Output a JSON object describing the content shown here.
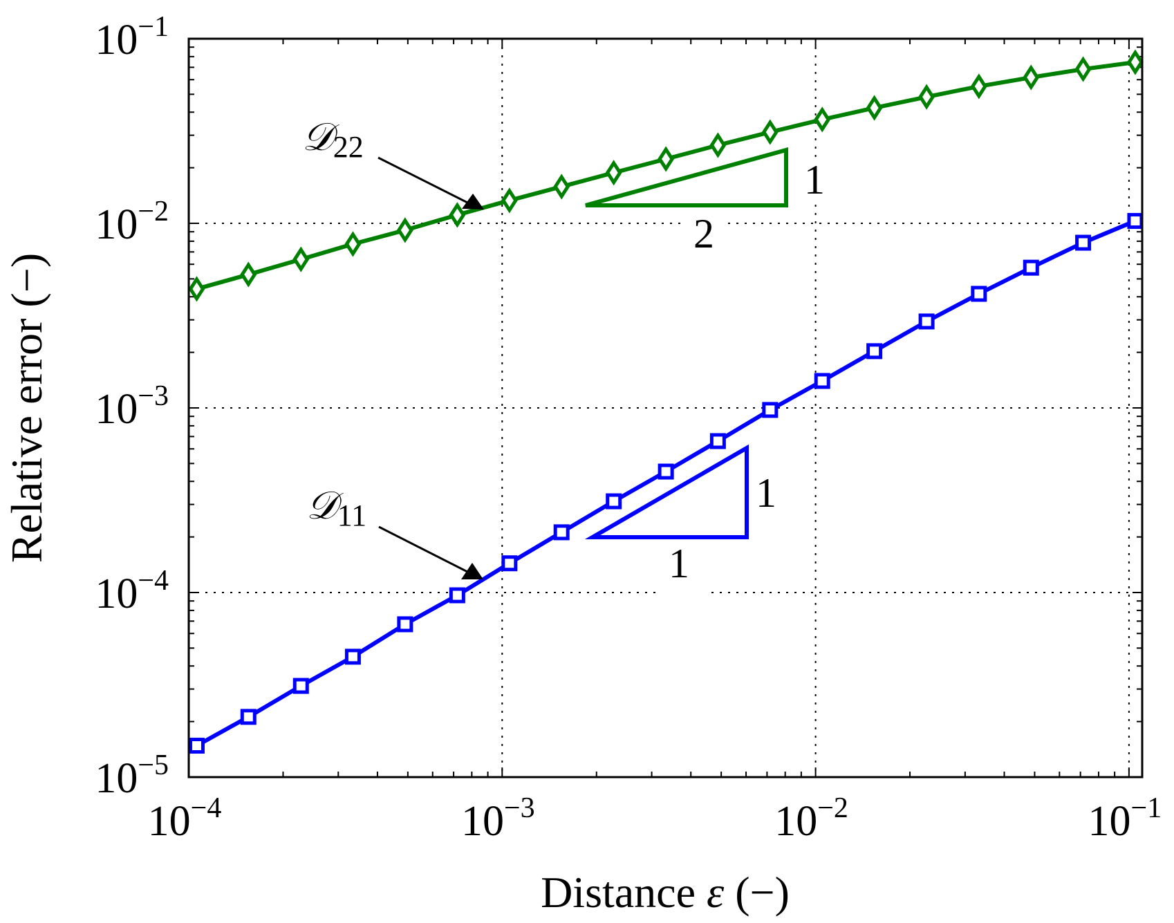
{
  "chart_data": {
    "type": "line",
    "title": "",
    "xlabel": "Distance ε (−)",
    "ylabel": "Relative error (−)",
    "xscale": "log",
    "yscale": "log",
    "xlim": [
      0.0001,
      0.11
    ],
    "ylim": [
      1e-05,
      0.1
    ],
    "grid": true,
    "grid_style": "dotted",
    "legend": null,
    "x_ticks": [
      {
        "value": 0.0001,
        "base": "10",
        "exp": "−4"
      },
      {
        "value": 0.001,
        "base": "10",
        "exp": "−3"
      },
      {
        "value": 0.01,
        "base": "10",
        "exp": "−2"
      },
      {
        "value": 0.1,
        "base": "10",
        "exp": "−1"
      }
    ],
    "y_ticks": [
      {
        "value": 0.1,
        "base": "10",
        "exp": "−1"
      },
      {
        "value": 0.01,
        "base": "10",
        "exp": "−2"
      },
      {
        "value": 0.001,
        "base": "10",
        "exp": "−3"
      },
      {
        "value": 0.0001,
        "base": "10",
        "exp": "−4"
      },
      {
        "value": 1e-05,
        "base": "10",
        "exp": "−5"
      }
    ],
    "x": [
      0.000106,
      0.000155,
      0.000228,
      0.000334,
      0.00049,
      0.000719,
      0.001055,
      0.001547,
      0.00227,
      0.00333,
      0.00488,
      0.00716,
      0.0105,
      0.0154,
      0.0226,
      0.0332,
      0.0487,
      0.0714,
      0.1047
    ],
    "series": [
      {
        "name": "D22",
        "label_main": "𝒟",
        "label_sub": "22",
        "color": "#008000",
        "marker": "diamond",
        "values": [
          0.00441,
          0.00528,
          0.00638,
          0.00772,
          0.00918,
          0.0111,
          0.0133,
          0.0158,
          0.0188,
          0.0223,
          0.0265,
          0.0312,
          0.0365,
          0.0422,
          0.0484,
          0.0552,
          0.0617,
          0.0684,
          0.0746
        ]
      },
      {
        "name": "D11",
        "label_main": "𝒟",
        "label_sub": "11",
        "color": "#0000ff",
        "marker": "square",
        "values": [
          1.48e-05,
          2.12e-05,
          3.12e-05,
          4.49e-05,
          6.73e-05,
          9.66e-05,
          0.000144,
          0.000212,
          0.000312,
          0.000452,
          0.000661,
          0.000975,
          0.0014,
          0.00203,
          0.00294,
          0.00415,
          0.00575,
          0.00785,
          0.0103
        ]
      }
    ],
    "annotations": [
      {
        "type": "arrow-label",
        "series": "D22",
        "text_main": "𝒟",
        "text_sub": "22"
      },
      {
        "type": "arrow-label",
        "series": "D11",
        "text_main": "𝒟",
        "text_sub": "11"
      },
      {
        "type": "slope-triangle",
        "series": "D22",
        "color": "#008000",
        "rise": "1",
        "run": "2",
        "slope": 0.5
      },
      {
        "type": "slope-triangle",
        "series": "D11",
        "color": "#0000ff",
        "rise": "1",
        "run": "1",
        "slope": 1
      }
    ]
  },
  "labels": {
    "xlabel_text": "Distance ",
    "xlabel_symbol": "ε",
    "xlabel_unit": " (−)",
    "ylabel": "Relative error (−)",
    "d22_main": "𝒟",
    "d22_sub": "22",
    "d11_main": "𝒟",
    "d11_sub": "11",
    "green_rise": "1",
    "green_run": "2",
    "blue_rise": "1",
    "blue_run": "1"
  }
}
